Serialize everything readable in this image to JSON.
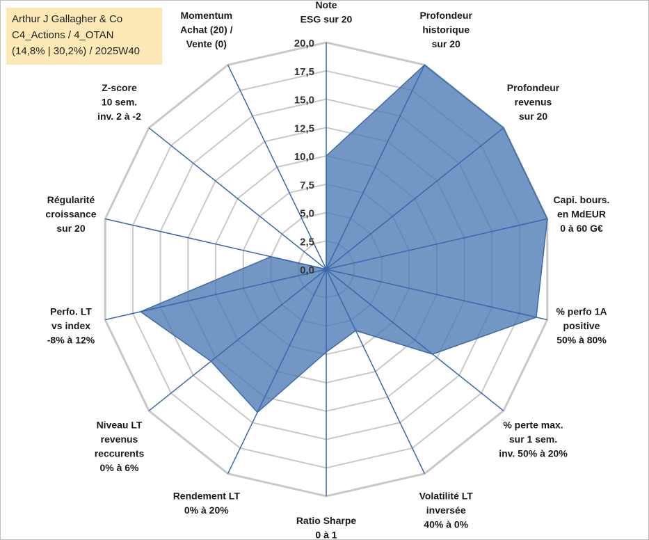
{
  "header": {
    "line1": "Arthur J Gallagher & Co",
    "line2": "C4_Actions / 4_OTAN",
    "line3": "(14,8% | 30,2%) / 2025W40"
  },
  "colors": {
    "fill": "#4a7ab4",
    "stroke": "#3f6aa6",
    "spoke": "#3a66ad",
    "grid": "#c8c8c8"
  },
  "chart_data": {
    "type": "radar",
    "title": "Arthur J Gallagher & Co",
    "rmin": 0,
    "rmax": 20,
    "tick_labels": [
      "0,0",
      "2,5",
      "5,0",
      "7,5",
      "10,0",
      "12,5",
      "15,0",
      "17,5",
      "20,0"
    ],
    "tick_values": [
      0,
      2.5,
      5,
      7.5,
      10,
      12.5,
      15,
      17.5,
      20
    ],
    "axes": [
      {
        "label": [
          "Note",
          "ESG sur 20"
        ],
        "value": 10.0
      },
      {
        "label": [
          "Profondeur",
          "historique",
          "sur 20"
        ],
        "value": 20.0
      },
      {
        "label": [
          "Profondeur",
          "revenus",
          "sur 20"
        ],
        "value": 20.0
      },
      {
        "label": [
          "Capi. bours.",
          "en MdEUR",
          "0 à 60 G€"
        ],
        "value": 20.0
      },
      {
        "label": [
          "% perfo 1A",
          "positive",
          "50% à 80%"
        ],
        "value": 19.0
      },
      {
        "label": [
          "% perte max.",
          "sur 1 sem.",
          "inv. 50% à 20%"
        ],
        "value": 12.0
      },
      {
        "label": [
          "Volatilité LT",
          "inversée",
          "40% à 0%"
        ],
        "value": 6.0
      },
      {
        "label": [
          "Ratio Sharpe",
          "0 à 1"
        ],
        "value": 7.3
      },
      {
        "label": [
          "Rendement LT",
          "0% à 20%"
        ],
        "value": 14.0
      },
      {
        "label": [
          "Niveau LT",
          "revenus",
          "reccurents",
          "0% à 6%"
        ],
        "value": 13.0
      },
      {
        "label": [
          "Perfo. LT",
          "vs index",
          "-8% à 12%"
        ],
        "value": 16.8
      },
      {
        "label": [
          "Régularité",
          "croissance",
          "sur 20"
        ],
        "value": 5.0
      },
      {
        "label": [
          "Z-score",
          "10 sem.",
          "inv. 2 à -2"
        ],
        "value": 0.0
      },
      {
        "label": [
          "Momentum",
          "Achat (20) /",
          "Vente (0)"
        ],
        "value": 0.0
      }
    ]
  }
}
